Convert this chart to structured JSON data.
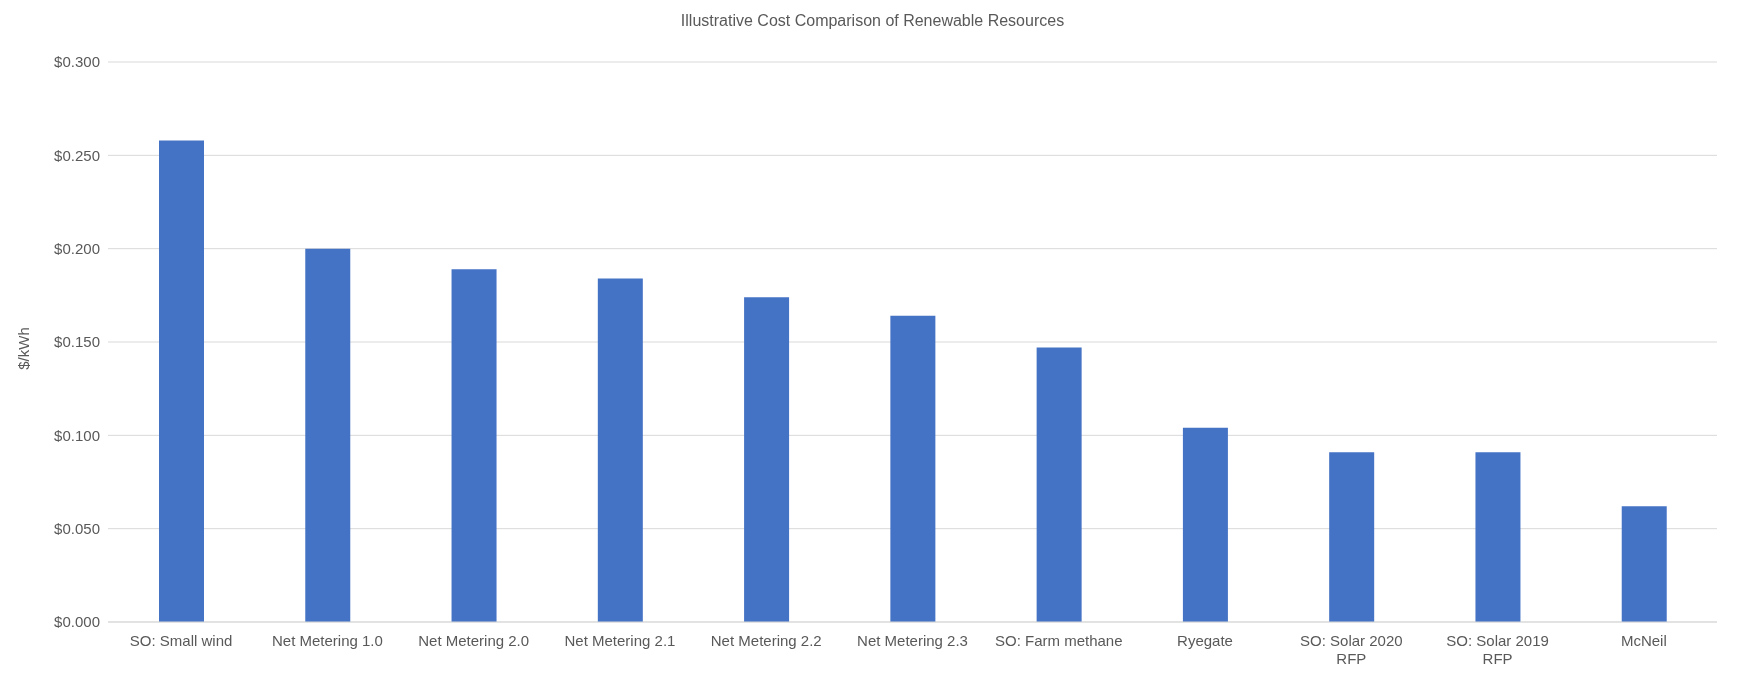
{
  "chart_data": {
    "type": "bar",
    "title": "Illustrative Cost Comparison of Renewable Resources",
    "ylabel": "$/kWh",
    "categories": [
      "SO: Small wind",
      "Net Metering 1.0",
      "Net Metering 2.0",
      "Net Metering 2.1",
      "Net Metering 2.2",
      "Net Metering 2.3",
      "SO: Farm methane",
      "Ryegate",
      "SO: Solar 2020 RFP",
      "SO: Solar 2019 RFP",
      "McNeil"
    ],
    "values": [
      0.258,
      0.2,
      0.189,
      0.184,
      0.174,
      0.164,
      0.147,
      0.104,
      0.091,
      0.091,
      0.062
    ],
    "color": "#4472c4",
    "ylim": [
      0,
      0.3
    ],
    "yticks": [
      {
        "value": 0,
        "label": "$0.000"
      },
      {
        "value": 0.05,
        "label": "$0.050"
      },
      {
        "value": 0.1,
        "label": "$0.100"
      },
      {
        "value": 0.15,
        "label": "$0.150"
      },
      {
        "value": 0.2,
        "label": "$0.200"
      },
      {
        "value": 0.25,
        "label": "$0.250"
      },
      {
        "value": 0.3,
        "label": "$0.300"
      }
    ],
    "grid": "y",
    "legend": false
  }
}
